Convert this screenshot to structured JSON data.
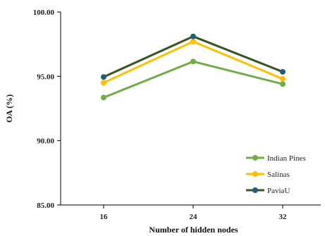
{
  "chart_data": {
    "type": "line",
    "title": "",
    "xlabel": "Number of hidden nodes",
    "ylabel": "OA (%)",
    "categories": [
      "16",
      "24",
      "32"
    ],
    "ylim": [
      85.0,
      100.0
    ],
    "yticks": [
      "85.00",
      "90.00",
      "95.00",
      "100.00"
    ],
    "ytick_values": [
      85,
      90,
      95,
      100
    ],
    "grid": false,
    "legend_position": "bottom-right",
    "series": [
      {
        "name": "Indian Pines",
        "values": [
          93.35,
          96.15,
          94.4
        ],
        "color": "#70ad47"
      },
      {
        "name": "Salinas",
        "values": [
          94.5,
          97.7,
          94.8
        ],
        "color": "#ffc000"
      },
      {
        "name": "PaviaU",
        "values": [
          94.95,
          98.1,
          95.35
        ],
        "color": "#375623",
        "marker_color": "#1f5f7a"
      }
    ]
  }
}
